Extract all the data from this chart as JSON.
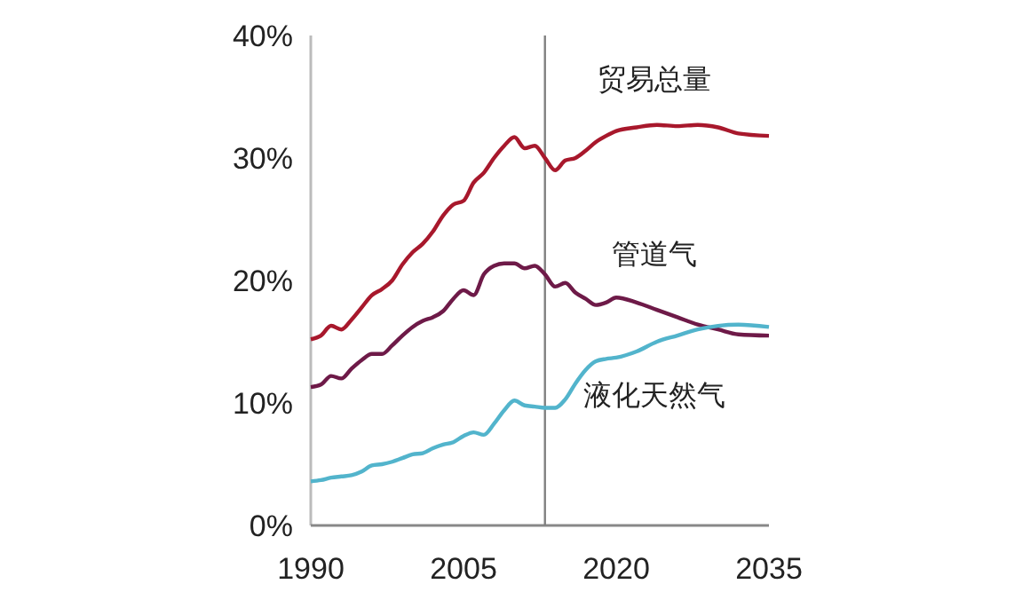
{
  "chart_data": {
    "type": "line",
    "x": [
      1990,
      1991,
      1992,
      1993,
      1994,
      1995,
      1996,
      1997,
      1998,
      1999,
      2000,
      2001,
      2002,
      2003,
      2004,
      2005,
      2006,
      2007,
      2008,
      2009,
      2010,
      2011,
      2012,
      2013,
      2014,
      2015,
      2016,
      2017,
      2018,
      2019,
      2020,
      2022,
      2024,
      2026,
      2028,
      2030,
      2032,
      2035
    ],
    "series": [
      {
        "name": "贸易总量",
        "color": "#a8182c",
        "values": [
          15.2,
          15.5,
          16.3,
          16.0,
          16.8,
          17.8,
          18.8,
          19.3,
          20.0,
          21.3,
          22.3,
          23.0,
          24.0,
          25.3,
          26.2,
          26.5,
          28.0,
          28.8,
          30.0,
          31.0,
          31.7,
          30.8,
          31.0,
          30.0,
          29.0,
          29.8,
          30.0,
          30.6,
          31.3,
          31.8,
          32.2,
          32.5,
          32.7,
          32.6,
          32.7,
          32.5,
          32.0,
          31.8
        ]
      },
      {
        "name": "管道气",
        "color": "#6e1a48",
        "values": [
          11.3,
          11.5,
          12.2,
          12.0,
          12.8,
          13.5,
          14.0,
          14.0,
          14.7,
          15.5,
          16.2,
          16.7,
          17.0,
          17.5,
          18.5,
          19.2,
          18.8,
          20.5,
          21.2,
          21.4,
          21.4,
          21.0,
          21.2,
          20.5,
          19.5,
          19.8,
          19.0,
          18.5,
          18.0,
          18.2,
          18.6,
          18.2,
          17.6,
          17.0,
          16.4,
          16.0,
          15.6,
          15.5
        ]
      },
      {
        "name": "液化天然气",
        "color": "#52b4cc",
        "values": [
          3.6,
          3.7,
          3.9,
          4.0,
          4.1,
          4.4,
          4.9,
          5.0,
          5.2,
          5.5,
          5.8,
          5.9,
          6.3,
          6.6,
          6.8,
          7.3,
          7.6,
          7.4,
          8.3,
          9.4,
          10.2,
          9.8,
          9.7,
          9.6,
          9.6,
          10.3,
          11.6,
          12.7,
          13.4,
          13.6,
          13.7,
          14.2,
          15.0,
          15.5,
          16.0,
          16.3,
          16.4,
          16.2
        ]
      }
    ],
    "xlim": [
      1990,
      2035
    ],
    "xticks": [
      1990,
      2005,
      2020,
      2035
    ],
    "ylim": [
      0,
      40
    ],
    "yticks": [
      {
        "value": 0,
        "label": "0%"
      },
      {
        "value": 10,
        "label": "10%"
      },
      {
        "value": 20,
        "label": "20%"
      },
      {
        "value": 30,
        "label": "30%"
      },
      {
        "value": 40,
        "label": "40%"
      }
    ],
    "ref_lines": [
      {
        "axis": "x",
        "value": 2013,
        "color": "#808080"
      }
    ],
    "grid": false,
    "marker": "none",
    "line_style": "solid"
  }
}
